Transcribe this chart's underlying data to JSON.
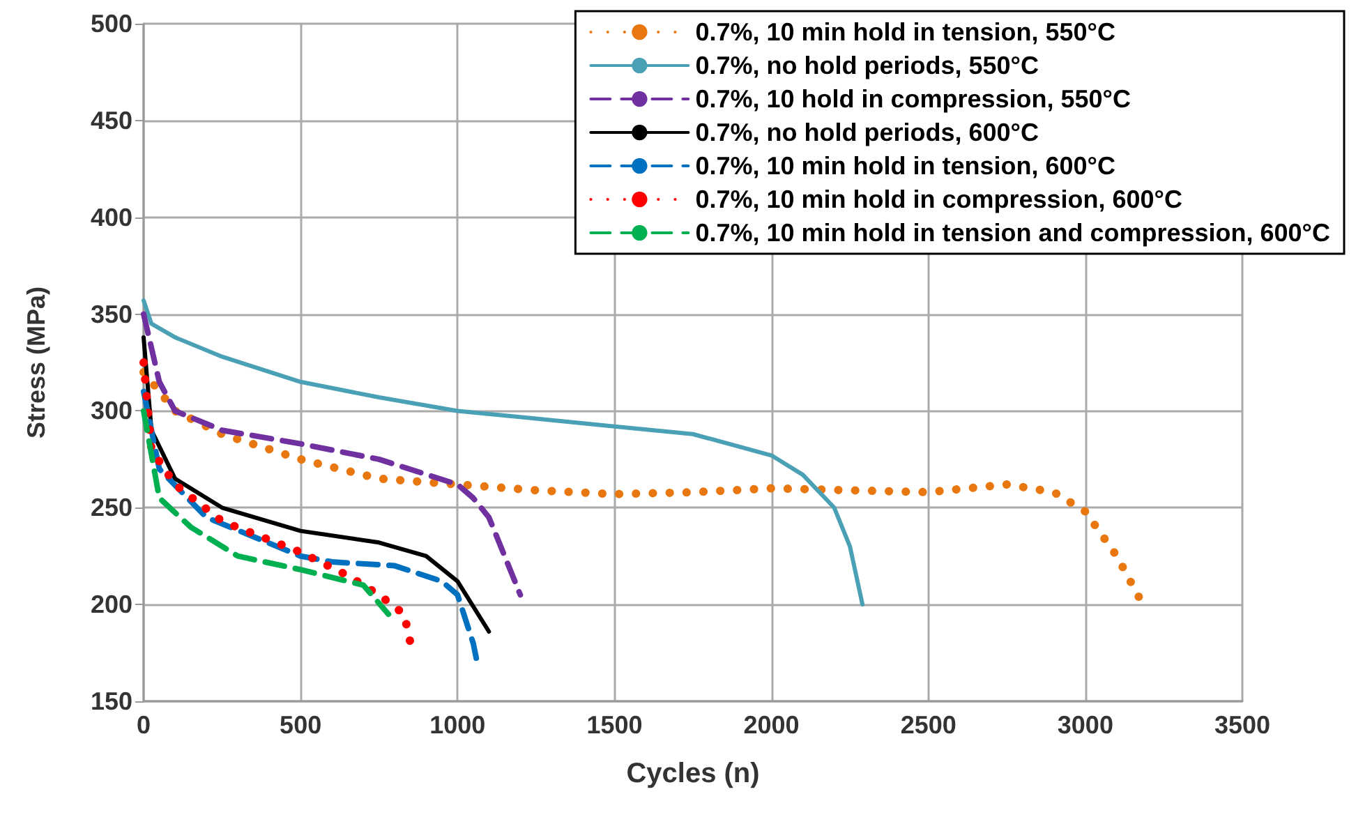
{
  "chart_data": {
    "type": "line",
    "xlabel": "Cycles (n)",
    "ylabel": "Stress (MPa)",
    "xlim": [
      0,
      3500
    ],
    "xticks": [
      0,
      500,
      1000,
      1500,
      2000,
      2500,
      3000,
      3500
    ],
    "ylim": [
      150,
      500
    ],
    "yticks": [
      150,
      200,
      250,
      300,
      350,
      400,
      450,
      500
    ],
    "grid": true,
    "legend": "top right",
    "marker": "none",
    "series": [
      {
        "name": "0.7%, 10 min hold in tension, 550°C",
        "color": "#e8770f",
        "line_style": "dotted",
        "x": [
          0,
          100,
          250,
          500,
          750,
          1000,
          1250,
          1500,
          1750,
          2000,
          2250,
          2500,
          2750,
          2900,
          3000,
          3100,
          3170
        ],
        "values": [
          320,
          300,
          288,
          275,
          265,
          262,
          259,
          257,
          258,
          260,
          259,
          258,
          262,
          258,
          248,
          225,
          204
        ]
      },
      {
        "name": "0.7%, no hold periods, 550°C",
        "color": "#4aa0b5",
        "line_style": "solid",
        "x": [
          0,
          25,
          100,
          250,
          500,
          750,
          1000,
          1250,
          1500,
          1750,
          2000,
          2100,
          2200,
          2250,
          2290
        ],
        "values": [
          357,
          345,
          338,
          328,
          315,
          307,
          300,
          296,
          292,
          288,
          277,
          267,
          250,
          230,
          200
        ]
      },
      {
        "name": "0.7%, 10 hold in compression, 550°C",
        "color": "#7030a0",
        "line_style": "dashed",
        "x": [
          0,
          50,
          100,
          250,
          500,
          750,
          1000,
          1050,
          1100,
          1150,
          1200
        ],
        "values": [
          350,
          315,
          300,
          290,
          283,
          275,
          262,
          255,
          245,
          225,
          205
        ]
      },
      {
        "name": "0.7%, no hold periods, 600°C",
        "color": "#000000",
        "line_style": "solid",
        "x": [
          0,
          25,
          100,
          250,
          500,
          750,
          900,
          1000,
          1100
        ],
        "values": [
          338,
          290,
          265,
          250,
          238,
          232,
          225,
          212,
          186
        ]
      },
      {
        "name": "0.7%, 10 min hold in tension, 600°C",
        "color": "#0070c0",
        "line_style": "dashed",
        "x": [
          0,
          50,
          200,
          500,
          600,
          800,
          950,
          1000,
          1050,
          1060
        ],
        "values": [
          310,
          270,
          245,
          225,
          222,
          220,
          212,
          205,
          180,
          172
        ]
      },
      {
        "name": "0.7%, 10 min hold in compression, 600°C",
        "color": "#ff0000",
        "line_style": "dotted",
        "x": [
          0,
          25,
          100,
          250,
          500,
          650,
          750,
          830,
          850
        ],
        "values": [
          325,
          280,
          262,
          243,
          227,
          215,
          205,
          195,
          180
        ]
      },
      {
        "name": "0.7%, 10 min hold in tension and compression, 600°C",
        "color": "#00b050",
        "line_style": "dashed",
        "x": [
          0,
          50,
          150,
          300,
          500,
          700,
          780
        ],
        "values": [
          300,
          255,
          240,
          225,
          218,
          210,
          195
        ]
      }
    ]
  }
}
